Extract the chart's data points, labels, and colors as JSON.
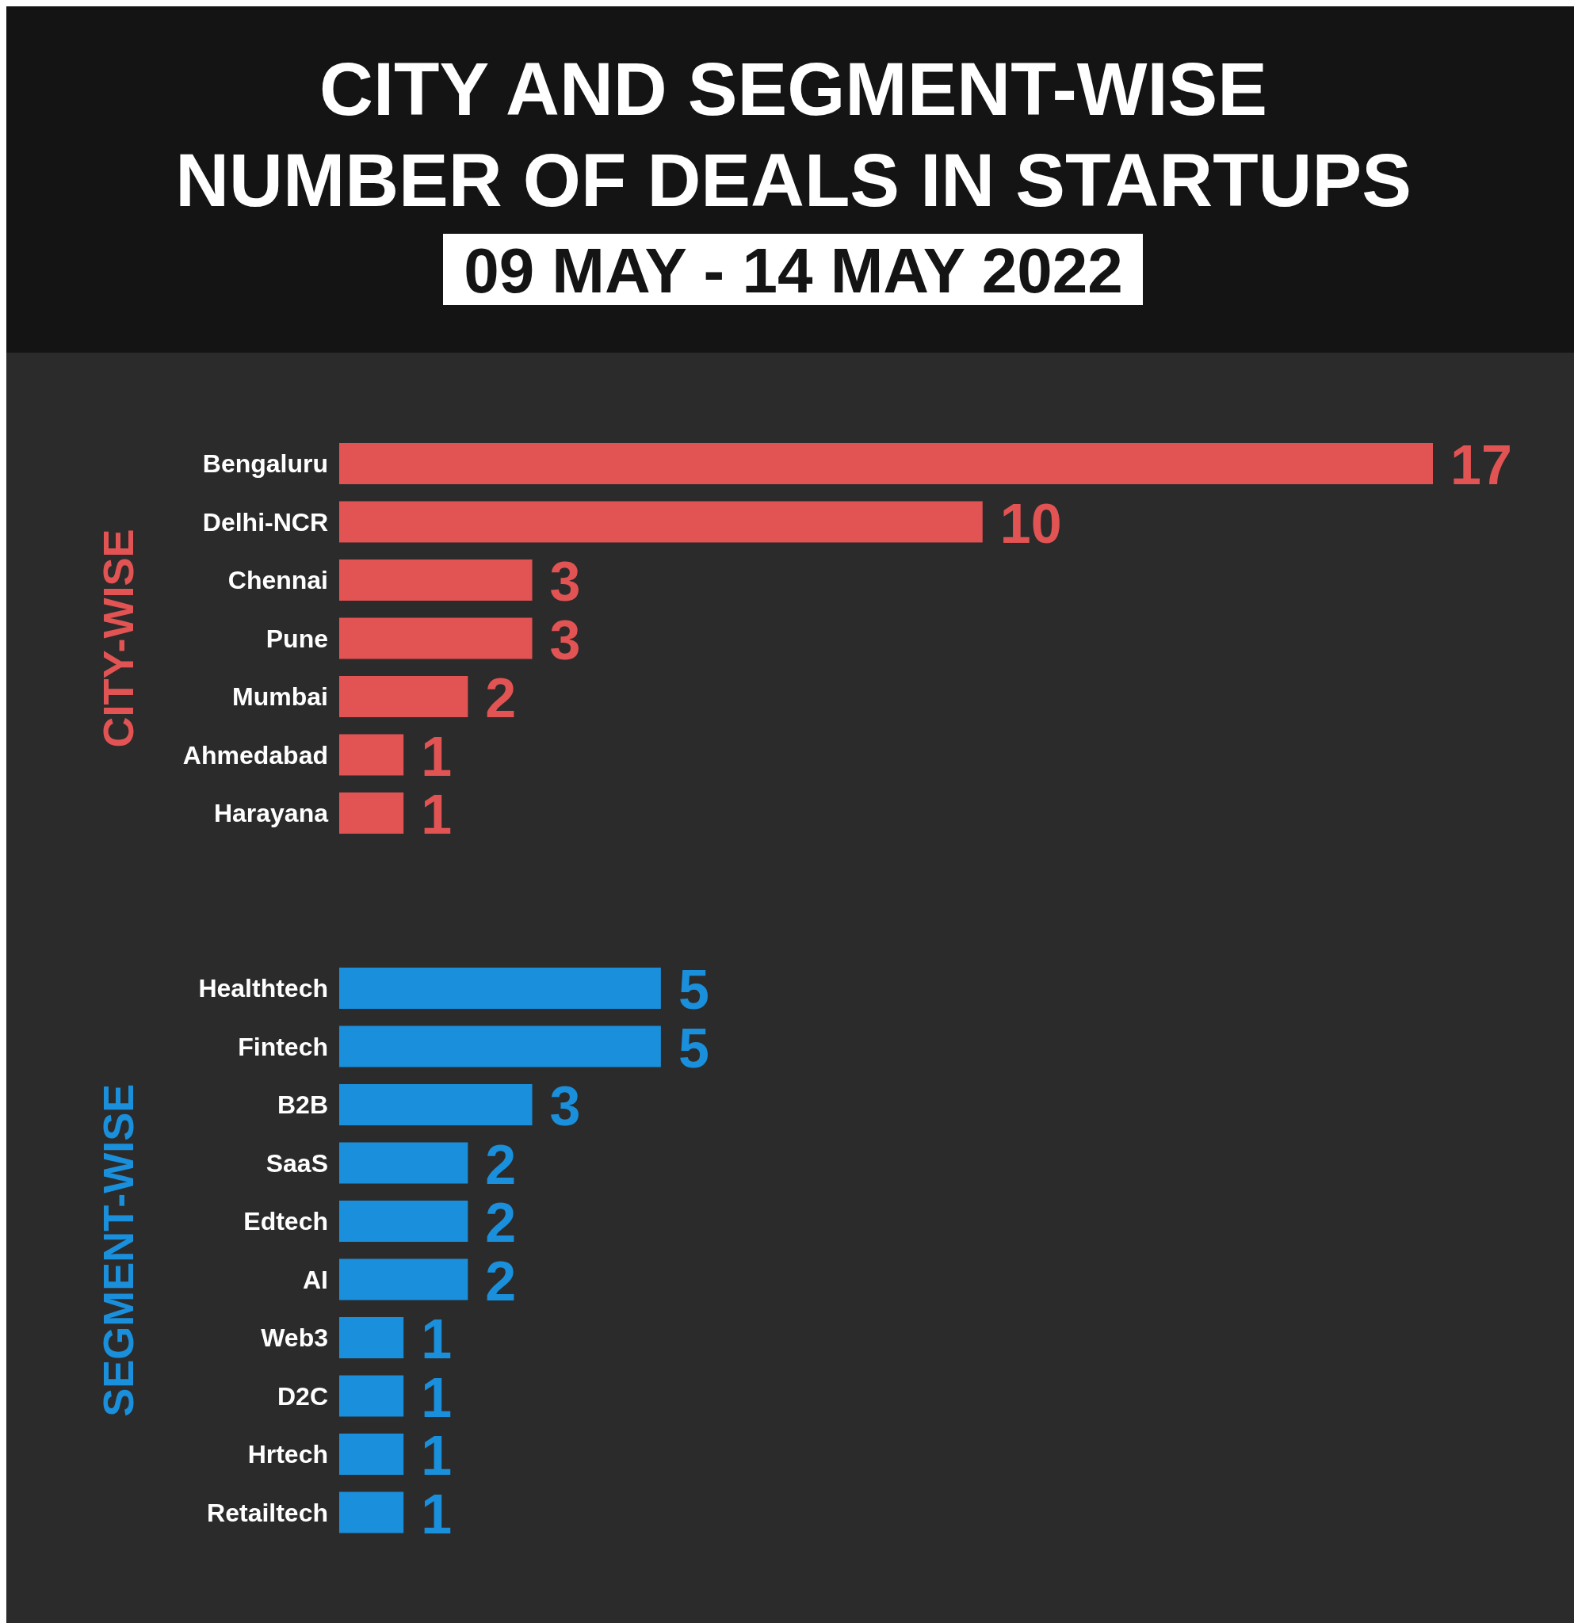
{
  "chart_data": [
    {
      "type": "bar",
      "orientation": "horizontal",
      "title": "CITY AND SEGMENT-WISE\nNUMBER OF DEALS IN STARTUPS",
      "subtitle": "09 MAY - 14 MAY 2022",
      "ylabel": "CITY-WISE",
      "categories": [
        "Bengaluru",
        "Delhi-NCR",
        "Chennai",
        "Pune",
        "Mumbai",
        "Ahmedabad",
        "Harayana"
      ],
      "values": [
        17,
        10,
        3,
        3,
        2,
        1,
        1
      ],
      "color": "#e25353",
      "data_labels": true
    },
    {
      "type": "bar",
      "orientation": "horizontal",
      "ylabel": "SEGMENT-WISE",
      "categories": [
        "Healthtech",
        "Fintech",
        "B2B",
        "SaaS",
        "Edtech",
        "AI",
        "Web3",
        "D2C",
        "Hrtech",
        "Retailtech"
      ],
      "values": [
        5,
        5,
        3,
        2,
        2,
        2,
        1,
        1,
        1,
        1
      ],
      "color": "#1a8fdb",
      "data_labels": true
    }
  ]
}
